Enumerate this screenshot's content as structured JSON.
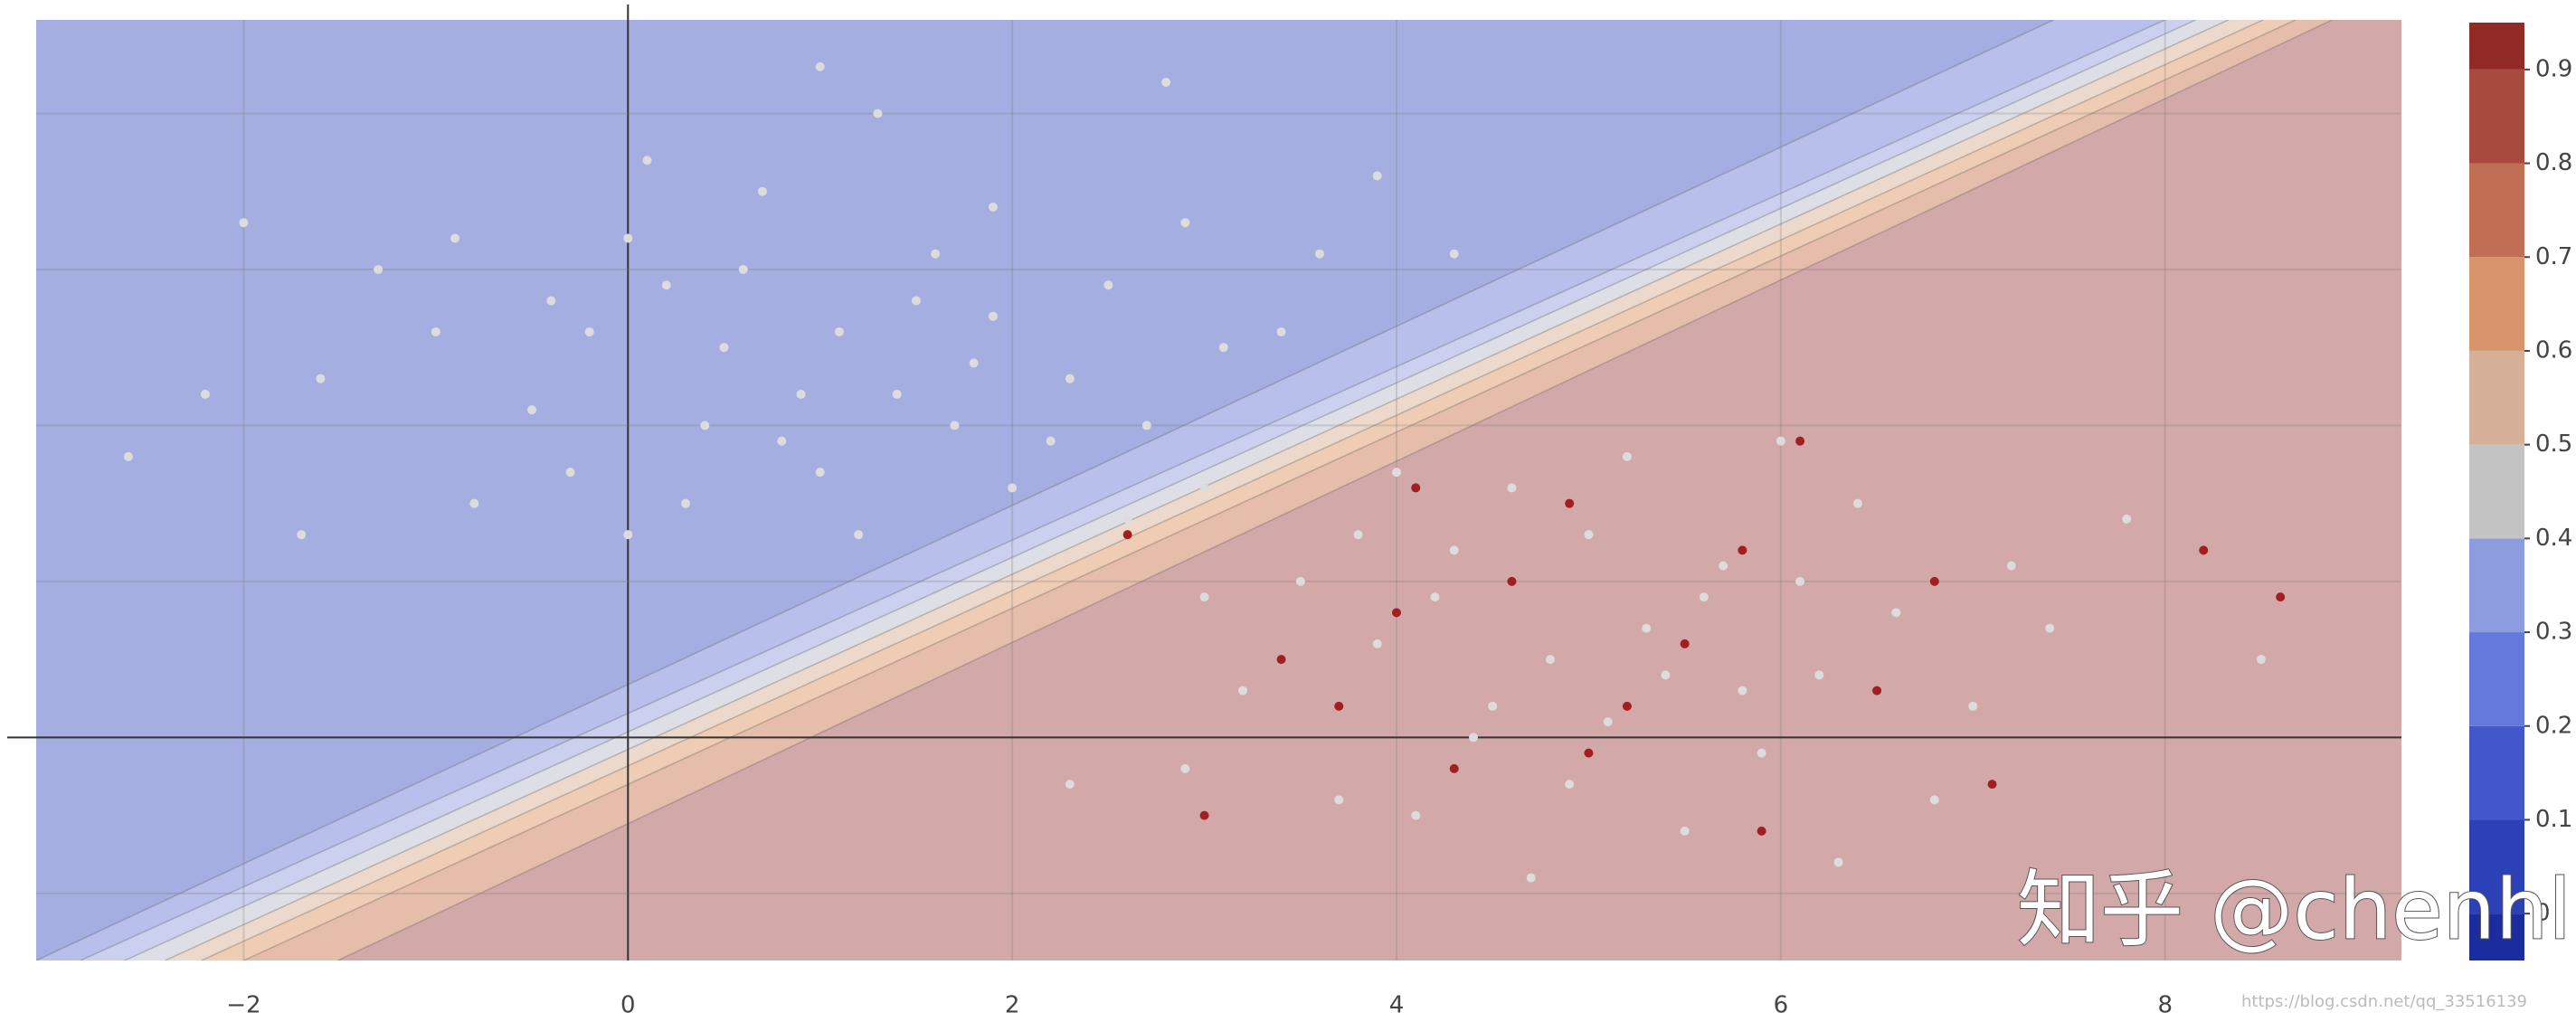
{
  "chart_data": {
    "type": "contour-scatter",
    "xlim": [
      -3.08,
      9.23
    ],
    "ylim": [
      -1.43,
      4.6
    ],
    "xticks": [
      {
        "value": -2,
        "label": "−2"
      },
      0,
      2,
      4,
      6,
      8
    ],
    "ygrid": [
      -1,
      0,
      1,
      2,
      3,
      4
    ],
    "grid": true,
    "contour_lines": [
      {
        "x": [
          -3.08,
          7.42
        ],
        "y": [
          -1.43,
          4.6
        ]
      },
      {
        "x": [
          -2.85,
          8.0
        ],
        "y": [
          -1.43,
          4.6
        ]
      },
      {
        "x": [
          -2.62,
          8.16
        ],
        "y": [
          -1.43,
          4.6
        ]
      },
      {
        "x": [
          -2.41,
          8.33
        ],
        "y": [
          -1.43,
          4.6
        ]
      },
      {
        "x": [
          -2.22,
          8.51
        ],
        "y": [
          -1.43,
          4.6
        ]
      },
      {
        "x": [
          -2.0,
          8.68
        ],
        "y": [
          -1.43,
          4.6
        ]
      },
      {
        "x": [
          -1.51,
          8.87
        ],
        "y": [
          -1.43,
          4.6
        ]
      }
    ],
    "region_colors": [
      "#a5aee0",
      "#b8bfea",
      "#cbd0ef",
      "#dedfe6",
      "#ecd9cc",
      "#efcdb5",
      "#e6bcaa",
      "#d3a8a8"
    ],
    "series": [
      {
        "color": "#dcdcdc",
        "x": [
          0.2,
          0.5,
          1.1,
          1.4,
          0.8,
          1.9,
          2.3,
          -0.5,
          -1.0,
          0.0,
          0.7,
          1.6,
          2.7,
          3.1,
          -1.6,
          -2.6,
          0.3,
          1.2,
          2.0,
          -0.3,
          1.0,
          1.3,
          2.8,
          3.9,
          -2.0,
          -1.3,
          0.9,
          1.7,
          2.5,
          0.4,
          -0.2,
          1.5,
          2.2,
          3.4,
          3.6,
          4.3,
          -1.7,
          0.0,
          -0.8,
          1.9,
          0.6,
          1.0,
          2.6,
          -0.9,
          3.0,
          -2.2,
          0.1,
          1.8,
          2.9,
          -0.4
        ],
        "y": [
          2.9,
          2.5,
          2.6,
          2.2,
          1.9,
          2.7,
          2.3,
          2.1,
          2.6,
          3.2,
          3.5,
          3.1,
          2.0,
          2.5,
          2.3,
          1.8,
          1.5,
          1.3,
          1.6,
          1.7,
          4.3,
          4.0,
          4.2,
          3.6,
          3.3,
          3.0,
          2.2,
          2.0,
          2.9,
          2.0,
          2.6,
          2.8,
          1.9,
          2.6,
          3.1,
          3.1,
          1.3,
          1.3,
          1.5,
          3.4,
          3.0,
          1.7,
          1.4,
          3.2,
          1.6,
          2.2,
          3.7,
          2.4,
          3.3,
          2.8
        ]
      },
      {
        "color": "#dcdcdc",
        "x": [
          4.2,
          4.8,
          5.3,
          5.7,
          6.2,
          4.5,
          5.0,
          3.9,
          3.5,
          6.6,
          7.0,
          5.9,
          4.9,
          4.1,
          5.5,
          6.4,
          3.2,
          2.9,
          7.4,
          5.2,
          4.6,
          6.0,
          3.7,
          5.8,
          4.4,
          6.8,
          8.5,
          3.0,
          4.0,
          5.1,
          6.3,
          4.7,
          5.6,
          7.8,
          2.3,
          4.3,
          5.4,
          6.1,
          3.8,
          7.2
        ],
        "y": [
          0.9,
          0.5,
          0.7,
          1.1,
          0.4,
          0.2,
          1.3,
          0.6,
          1.0,
          0.8,
          0.2,
          -0.1,
          -0.3,
          -0.5,
          -0.6,
          1.5,
          0.3,
          -0.2,
          0.7,
          1.8,
          1.6,
          1.9,
          -0.4,
          0.3,
          0.0,
          -0.4,
          0.5,
          0.9,
          1.7,
          0.1,
          -0.8,
          -0.9,
          0.9,
          1.4,
          -0.3,
          1.2,
          0.4,
          1.0,
          1.3,
          1.1
        ]
      },
      {
        "color": "#a11f1f",
        "x": [
          4.0,
          4.6,
          5.2,
          5.8,
          6.1,
          4.3,
          3.4,
          2.6,
          5.5,
          6.5,
          7.1,
          4.9,
          3.0,
          5.9,
          8.2,
          8.6,
          4.1,
          6.8,
          5.0,
          3.7
        ],
        "y": [
          0.8,
          1.0,
          0.2,
          1.2,
          1.9,
          -0.2,
          0.5,
          1.3,
          0.6,
          0.3,
          -0.3,
          1.5,
          -0.5,
          -0.6,
          1.2,
          0.9,
          1.6,
          1.0,
          -0.1,
          0.2
        ]
      }
    ],
    "colorbar": {
      "lim": [
        -0.05,
        0.95
      ],
      "ticks": [
        0,
        0.1,
        0.2,
        0.3,
        0.4,
        0.5,
        0.6,
        0.7,
        0.8,
        0.9
      ],
      "colors": [
        "#1a2c9e",
        "#2c40b8",
        "#4257c9",
        "#6479db",
        "#8d9cdf",
        "#c4c4c4",
        "#d7b09a",
        "#d8956b",
        "#c06f55",
        "#a84a3e",
        "#922a26"
      ]
    },
    "watermark": "知乎 @chenhl",
    "source_url": "https://blog.csdn.net/qq_33516139"
  }
}
